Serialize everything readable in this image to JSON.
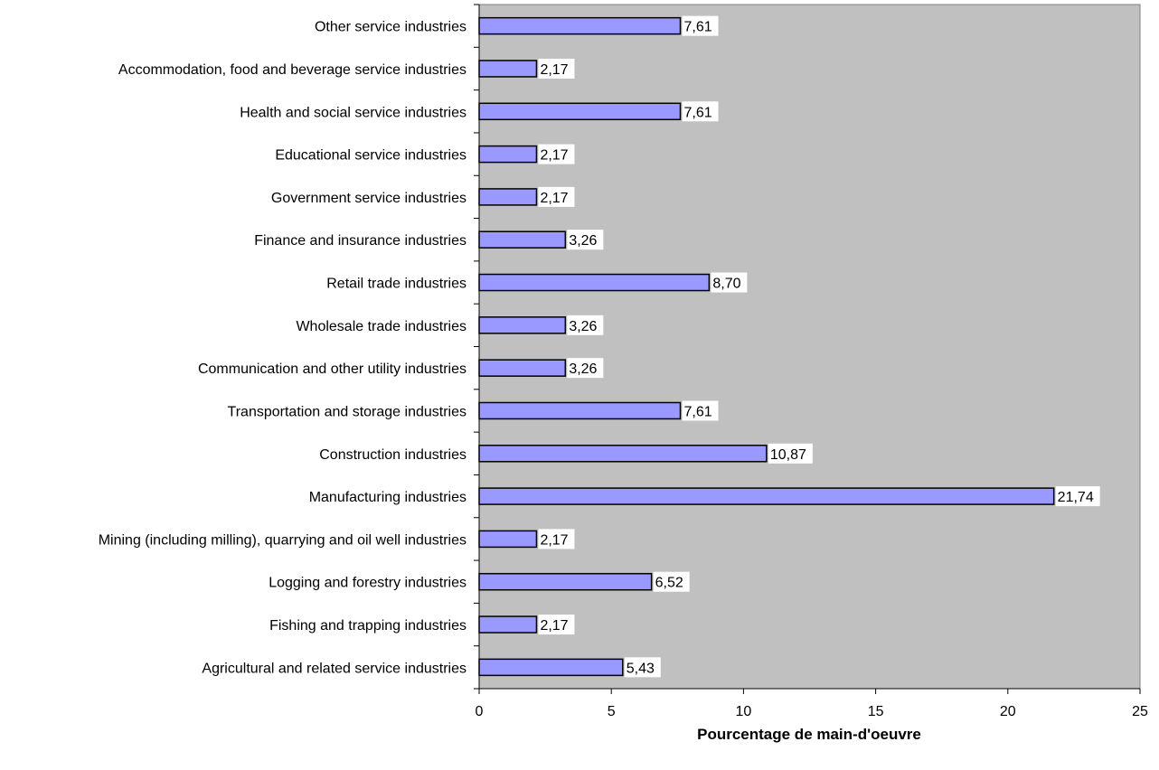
{
  "chart_data": {
    "type": "bar",
    "orientation": "horizontal",
    "categories": [
      "Agricultural and related service industries",
      "Fishing and trapping industries",
      "Logging and forestry industries",
      "Mining (including milling), quarrying and oil well industries",
      "Manufacturing industries",
      "Construction industries",
      "Transportation and storage industries",
      "Communication and other utility industries",
      "Wholesale trade industries",
      "Retail trade industries",
      "Finance and insurance industries",
      "Government service industries",
      "Educational service industries",
      "Health and social service industries",
      "Accommodation, food and beverage service industries",
      "Other service industries"
    ],
    "values": [
      5.43,
      2.17,
      6.52,
      2.17,
      21.74,
      10.87,
      7.61,
      3.26,
      3.26,
      8.7,
      3.26,
      2.17,
      2.17,
      7.61,
      2.17,
      7.61
    ],
    "data_labels": [
      "5,43",
      "2,17",
      "6,52",
      "2,17",
      "21,74",
      "10,87",
      "7,61",
      "3,26",
      "3,26",
      "8,70",
      "3,26",
      "2,17",
      "2,17",
      "7,61",
      "2,17",
      "7,61"
    ],
    "title": "",
    "xlabel": "Pourcentage de main-d'oeuvre",
    "ylabel": "",
    "xlim": [
      0,
      25
    ],
    "xticks": [
      0,
      5,
      10,
      15,
      20,
      25
    ],
    "grid": false,
    "legend": "none",
    "colors": {
      "bar_fill": "#9999ff",
      "bar_stroke": "#000000",
      "plot_background": "#c0c0c0",
      "label_background": "#ffffff"
    }
  }
}
